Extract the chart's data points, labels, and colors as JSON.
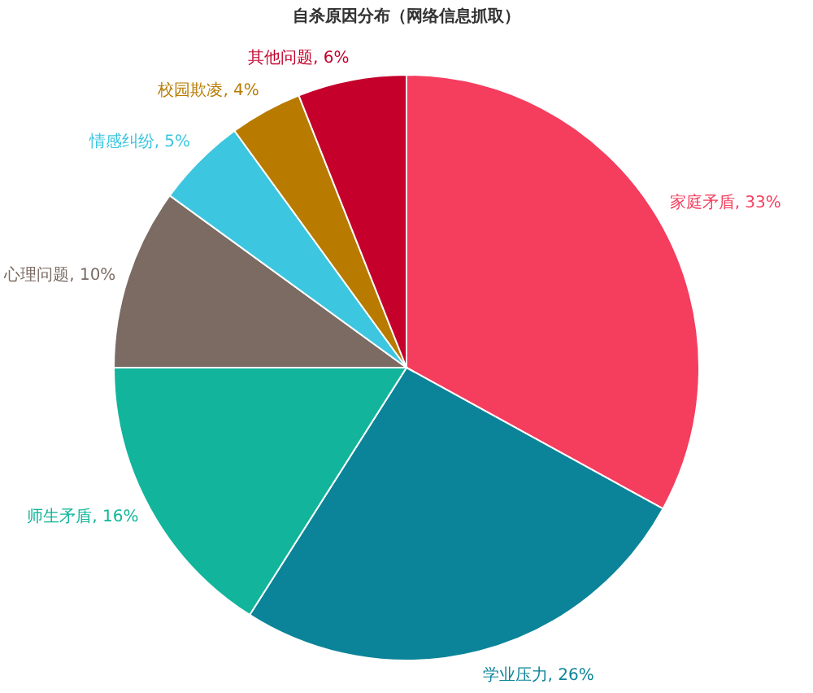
{
  "chart_data": {
    "type": "pie",
    "title": "自杀原因分布（网络信息抓取）",
    "categories": [
      "家庭矛盾",
      "学业压力",
      "师生矛盾",
      "心理问题",
      "情感纠纷",
      "校园欺凌",
      "其他问题"
    ],
    "values": [
      33,
      26,
      16,
      10,
      5,
      4,
      6
    ],
    "value_labels": [
      "33%",
      "26%",
      "16%",
      "10%",
      "5%",
      "4%",
      "6%"
    ],
    "colors": [
      "#f53d5e",
      "#0b8499",
      "#12b59b",
      "#7b6b63",
      "#3cc6e0",
      "#b87b00",
      "#c4002b"
    ]
  }
}
